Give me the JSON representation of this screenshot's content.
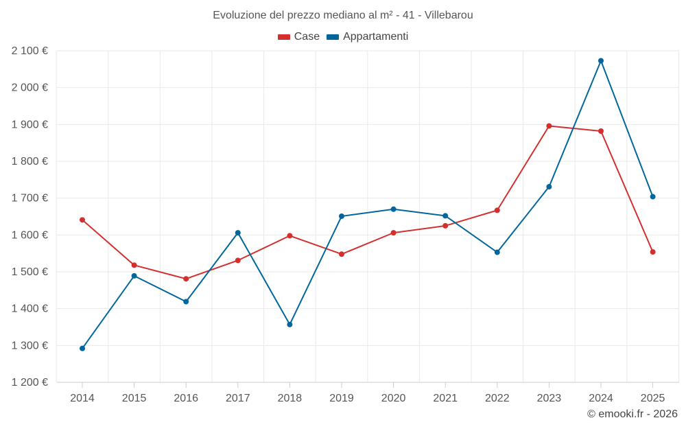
{
  "colors": {
    "case": "#d32f2f",
    "appartamenti": "#01669b",
    "grid": "#e9e9e9",
    "axis": "#cccccc"
  },
  "chart_data": {
    "type": "line",
    "title": "Evoluzione del prezzo mediano al m² - 41 - Villebarou",
    "categories": [
      "2014",
      "2015",
      "2016",
      "2017",
      "2018",
      "2019",
      "2020",
      "2021",
      "2022",
      "2023",
      "2024",
      "2025"
    ],
    "series": [
      {
        "name": "Case",
        "color": "#d32f2f",
        "values": [
          1641,
          1518,
          1481,
          1531,
          1598,
          1548,
          1606,
          1625,
          1667,
          1896,
          1882,
          1554
        ]
      },
      {
        "name": "Appartamenti",
        "color": "#01669b",
        "values": [
          1292,
          1489,
          1419,
          1606,
          1357,
          1651,
          1670,
          1652,
          1553,
          1731,
          2073,
          1704
        ]
      }
    ],
    "yticks": [
      1200,
      1300,
      1400,
      1500,
      1600,
      1700,
      1800,
      1900,
      2000,
      2100
    ],
    "ytick_labels": [
      "1 200 €",
      "1 300 €",
      "1 400 €",
      "1 500 €",
      "1 600 €",
      "1 700 €",
      "1 800 €",
      "1 900 €",
      "2 000 €",
      "2 100 €"
    ],
    "ylim": [
      1200,
      2100
    ],
    "legend_position": "top-center",
    "grid": true
  },
  "credit": "© emooki.fr - 2026"
}
